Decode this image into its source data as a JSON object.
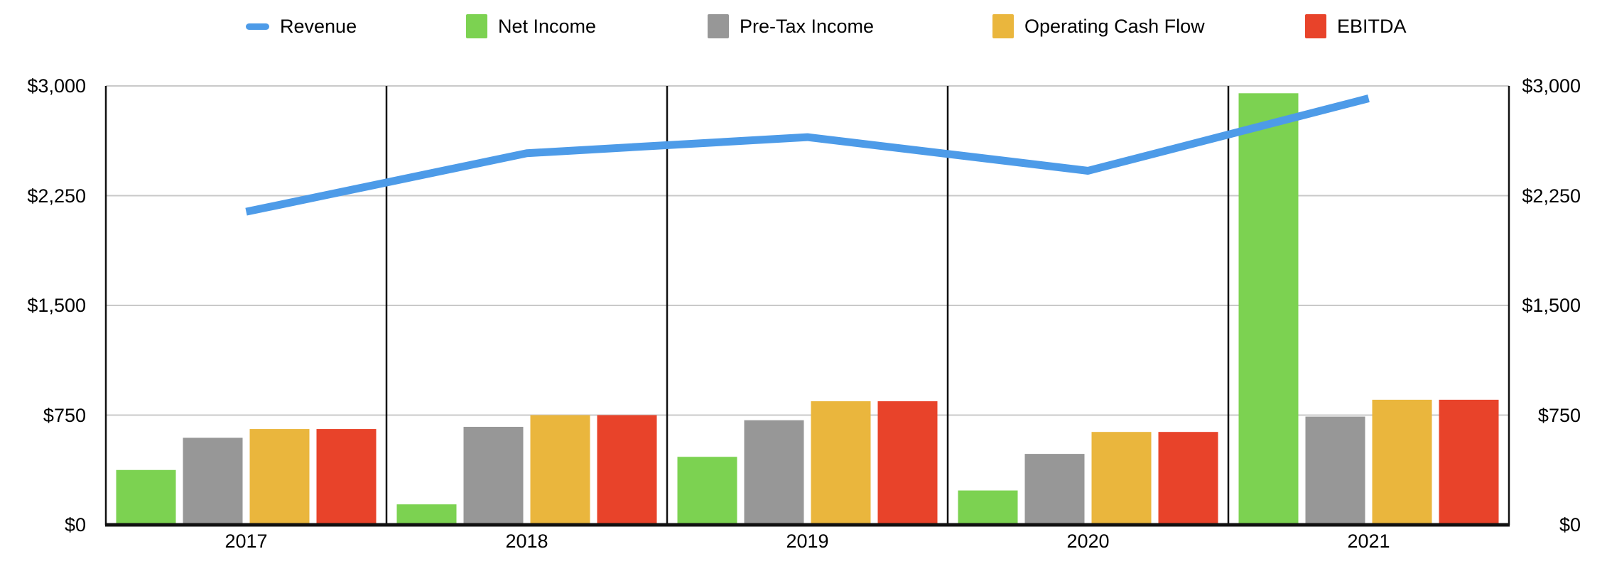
{
  "chart_data": {
    "type": "combo-bar-line",
    "title": "",
    "categories": [
      "2017",
      "2018",
      "2019",
      "2020",
      "2021"
    ],
    "line_series": {
      "name": "Revenue",
      "color": "#4d9be8",
      "values": [
        2140,
        2540,
        2650,
        2420,
        2915
      ]
    },
    "bar_series": [
      {
        "name": "Net Income",
        "color": "#7cd251",
        "values": [
          375,
          140,
          465,
          235,
          2950
        ]
      },
      {
        "name": "Pre-Tax Income",
        "color": "#979797",
        "values": [
          595,
          670,
          715,
          485,
          740
        ]
      },
      {
        "name": "Operating Cash Flow",
        "color": "#eab63d",
        "values": [
          655,
          750,
          845,
          635,
          855
        ]
      },
      {
        "name": "EBITDA",
        "color": "#e8432a",
        "values": [
          655,
          750,
          845,
          635,
          855
        ]
      }
    ],
    "y_axis": {
      "min": 0,
      "max": 3000,
      "tick_interval": 750,
      "tick_labels": [
        "$0",
        "$750",
        "$1,500",
        "$2,250",
        "$3,000"
      ],
      "sides": "both",
      "label_alignment": "right"
    },
    "x_axis": {
      "tick_labels": [
        "2017",
        "2018",
        "2019",
        "2020",
        "2021"
      ]
    },
    "legend": {
      "position": "top",
      "entries": [
        "Revenue",
        "Net Income",
        "Pre-Tax Income",
        "Operating Cash Flow",
        "EBITDA"
      ]
    },
    "grid": {
      "horizontal_gridlines": true,
      "gridline_color": "#c9c9c9",
      "vertical_separator_color": "#111111",
      "baseline_color": "#111111"
    }
  }
}
